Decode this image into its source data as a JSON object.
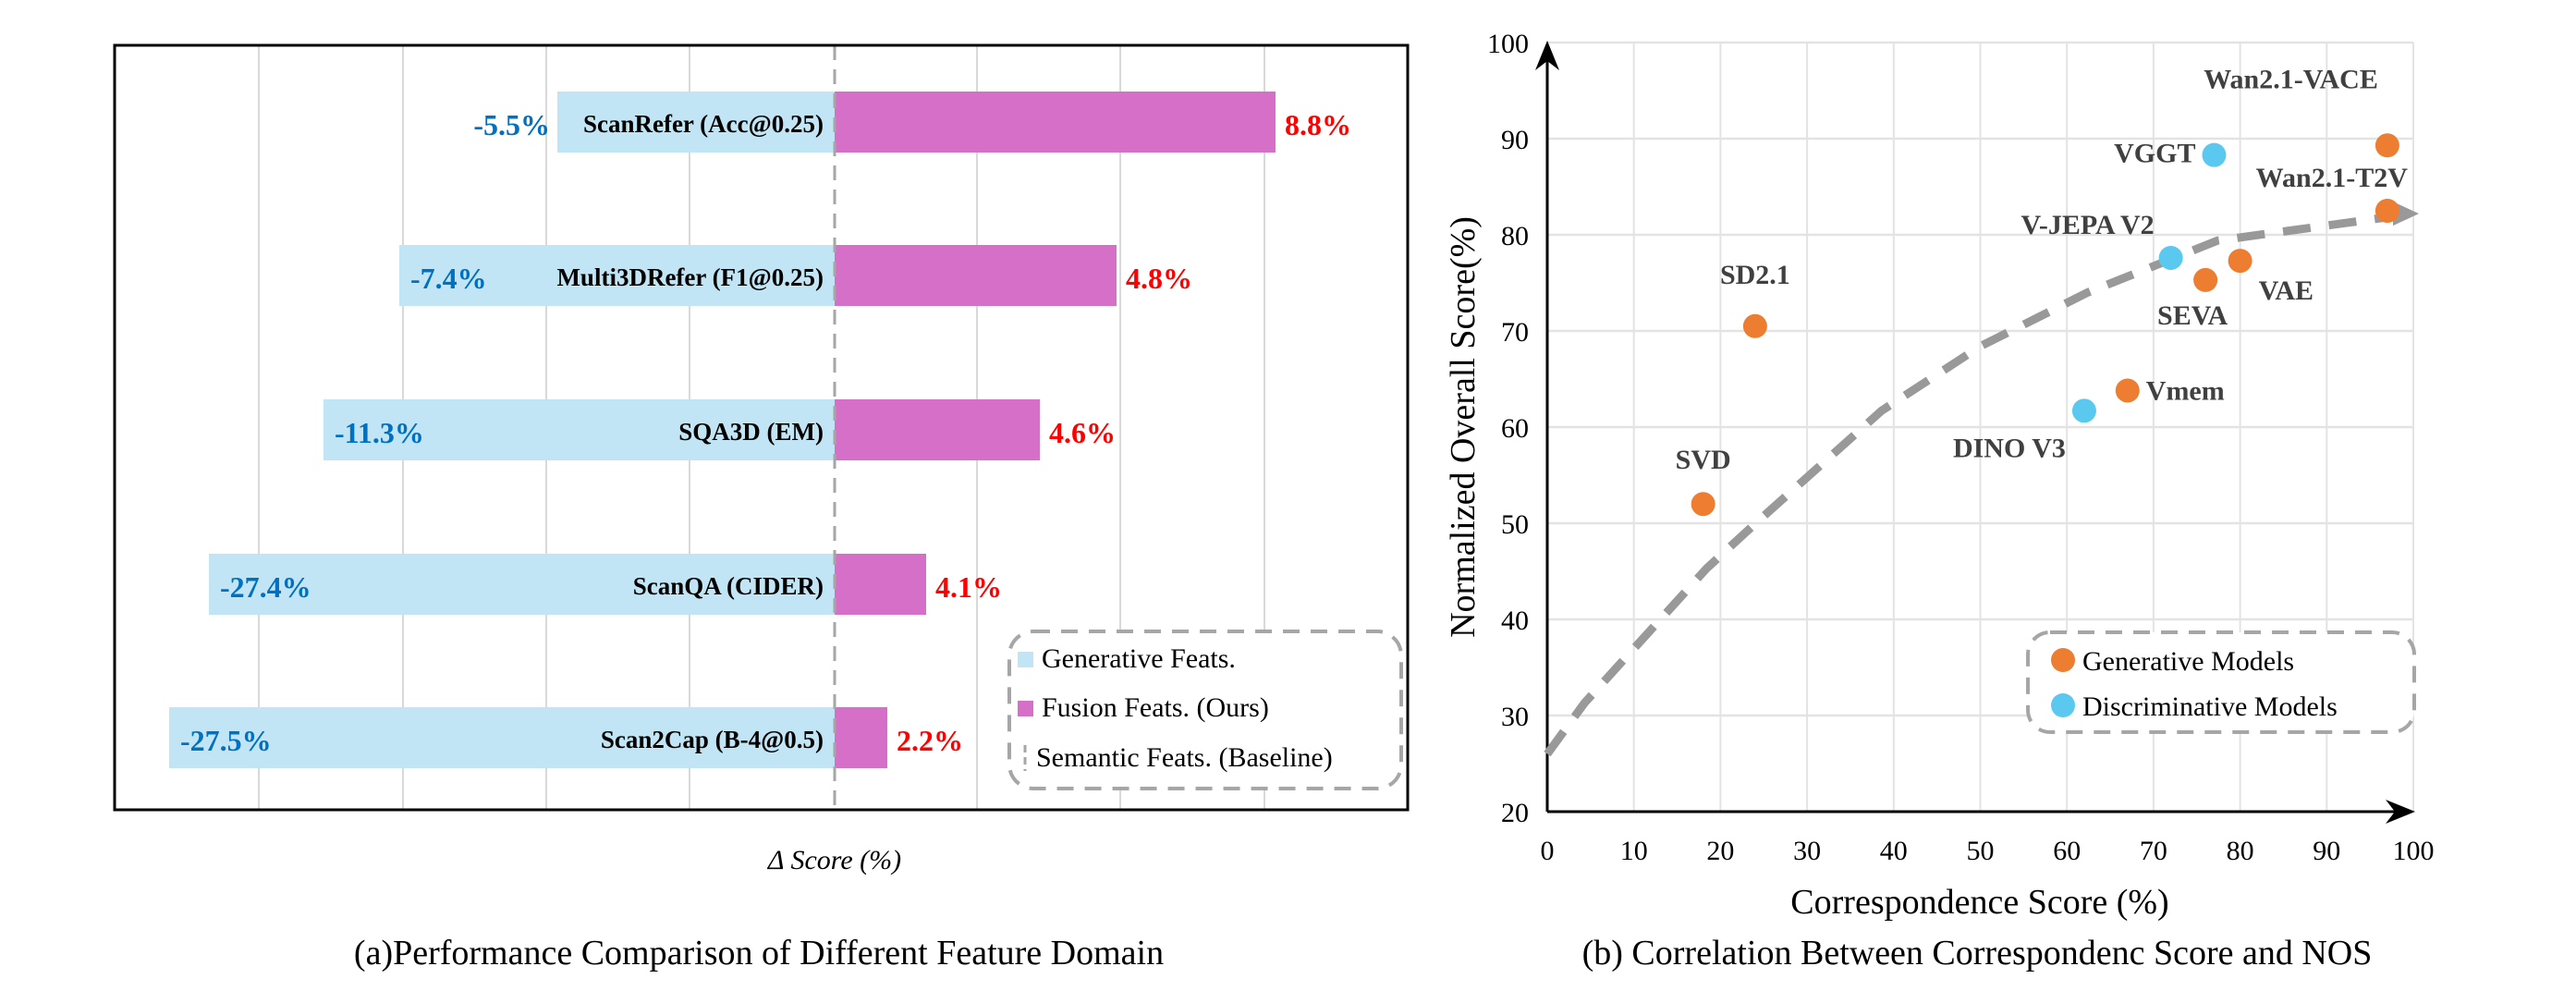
{
  "chart_data": [
    {
      "type": "bar",
      "orientation": "horizontal-diverging",
      "title": "(a)Performance Comparison of Different Feature Domain",
      "xlabel": "Δ Score (%)",
      "categories": [
        "ScanRefer (Acc@0.25)",
        "Multi3DRefer (F1@0.25)",
        "SQA3D (EM)",
        "ScanQA (CIDER)",
        "Scan2Cap (B-4@0.5)"
      ],
      "series": [
        {
          "name": "Generative Feats.",
          "color": "#C2E5F5",
          "label_color": "#0070C0",
          "values": [
            -5.5,
            -7.4,
            -11.3,
            -27.4,
            -27.5
          ],
          "labels": [
            "-5.5%",
            "-7.4%",
            "-11.3%",
            "-27.4%",
            "-27.5%"
          ]
        },
        {
          "name": "Fusion Feats. (Ours)",
          "color": "#D66FC8",
          "label_color": "#FF0000",
          "values": [
            8.8,
            4.8,
            4.6,
            4.1,
            2.2
          ],
          "labels": [
            "8.8%",
            "4.8%",
            "4.6%",
            "4.1%",
            "2.2%"
          ]
        }
      ],
      "baseline": {
        "name": "Semantic Feats. (Baseline)",
        "value": 0,
        "style": "dashed",
        "color": "#A6A6A6"
      },
      "legend": {
        "placement": "bottom-right",
        "style": "dashed-rounded"
      },
      "grid": "vertical"
    },
    {
      "type": "scatter",
      "title": "(b) Correlation Between Correspondenc Score and NOS",
      "xlabel": "Correspondence Score (%)",
      "ylabel": "Normalized Overall Score(%)",
      "xlim": [
        0,
        100
      ],
      "ylim": [
        20,
        100
      ],
      "xticks": [
        "0",
        "10",
        "20",
        "30",
        "40",
        "50",
        "60",
        "70",
        "80",
        "90",
        "100"
      ],
      "yticks": [
        "20",
        "30",
        "40",
        "50",
        "60",
        "70",
        "80",
        "90",
        "100"
      ],
      "grid": "both",
      "legend": {
        "placement": "bottom-right",
        "style": "dashed-rounded"
      },
      "series": [
        {
          "name": "Generative Models",
          "color": "#ED7D31",
          "points": [
            {
              "label": "SVD",
              "x": 18,
              "y": 52
            },
            {
              "label": "SD2.1",
              "x": 24,
              "y": 70.5
            },
            {
              "label": "Vmem",
              "x": 67,
              "y": 63.8
            },
            {
              "label": "SEVA",
              "x": 76,
              "y": 75.3
            },
            {
              "label": "VAE",
              "x": 80,
              "y": 77.3
            },
            {
              "label": "Wan2.1-VACE",
              "x": 97,
              "y": 89.3
            },
            {
              "label": "Wan2.1-T2V",
              "x": 97,
              "y": 82.5
            }
          ]
        },
        {
          "name": "Discriminative Models",
          "color": "#5BC8F0",
          "points": [
            {
              "label": "DINO V3",
              "x": 62,
              "y": 61.7
            },
            {
              "label": "V-JEPA V2",
              "x": 72,
              "y": 77.6
            },
            {
              "label": "VGGT",
              "x": 77,
              "y": 88.3
            }
          ]
        }
      ],
      "trend": {
        "style": "dashed-arrow",
        "color": "#999999",
        "points": [
          [
            0,
            26
          ],
          [
            4.3,
            31.3
          ],
          [
            18.4,
            45.3
          ],
          [
            23.7,
            49.7
          ],
          [
            38.6,
            61.7
          ],
          [
            50,
            68.4
          ],
          [
            62.4,
            74
          ],
          [
            77.4,
            79.4
          ],
          [
            100,
            82.2
          ]
        ]
      }
    }
  ]
}
